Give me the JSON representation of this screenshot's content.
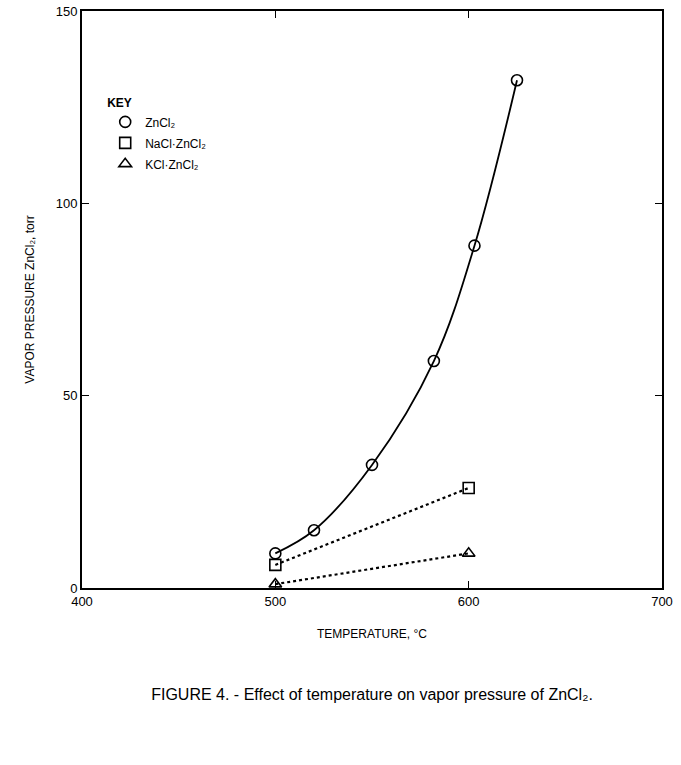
{
  "chart_data": {
    "type": "line",
    "title": "FIGURE 4. - Effect of temperature on vapor pressure of ZnCl₂.",
    "x_label": "TEMPERATURE, °C",
    "y_label": "VAPOR PRESSURE ZnCl₂, torr",
    "legend_title": "KEY",
    "legend": "upper left",
    "grid": false,
    "xlim": [
      400,
      700
    ],
    "xticks": [
      400,
      500,
      600,
      700
    ],
    "ylim": [
      0,
      150
    ],
    "yticks": [
      0,
      50,
      100,
      150
    ],
    "series": [
      {
        "name": "ZnCl₂",
        "color": "#000000",
        "marker": "circle-open",
        "line_style": "solid",
        "x": [
          500,
          520,
          550,
          582,
          603,
          625
        ],
        "values": [
          9,
          15,
          32,
          59,
          89,
          132
        ]
      },
      {
        "name": "NaCl·ZnCl₂",
        "color": "#000000",
        "marker": "square-open",
        "line_style": "dot",
        "x": [
          500,
          600
        ],
        "values": [
          6,
          26
        ]
      },
      {
        "name": "KCl·ZnCl₂",
        "color": "#000000",
        "marker": "triangle-up-open",
        "line_style": "dot",
        "x": [
          500,
          600
        ],
        "values": [
          1,
          9
        ]
      }
    ]
  }
}
